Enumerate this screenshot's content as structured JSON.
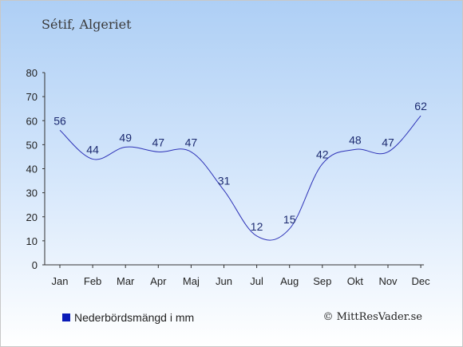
{
  "title": "Sétif, Algeriet",
  "credit": "© MittResVader.se",
  "colors": {
    "line": "#2f34b8",
    "legend_swatch": "#0a1bb8",
    "axis": "#333333",
    "label": "#1c2a70"
  },
  "chart_data": {
    "type": "line",
    "categories": [
      "Jan",
      "Feb",
      "Mar",
      "Apr",
      "Maj",
      "Jun",
      "Jul",
      "Aug",
      "Sep",
      "Okt",
      "Nov",
      "Dec"
    ],
    "series": [
      {
        "name": "Nederbördsmängd i mm",
        "values": [
          56,
          44,
          49,
          47,
          47,
          31,
          12,
          15,
          42,
          48,
          47,
          62
        ]
      }
    ],
    "ylim": [
      0,
      80
    ],
    "yticks": [
      0,
      10,
      20,
      30,
      40,
      50,
      60,
      70,
      80
    ],
    "grid": false,
    "legend": "bottom-left"
  }
}
